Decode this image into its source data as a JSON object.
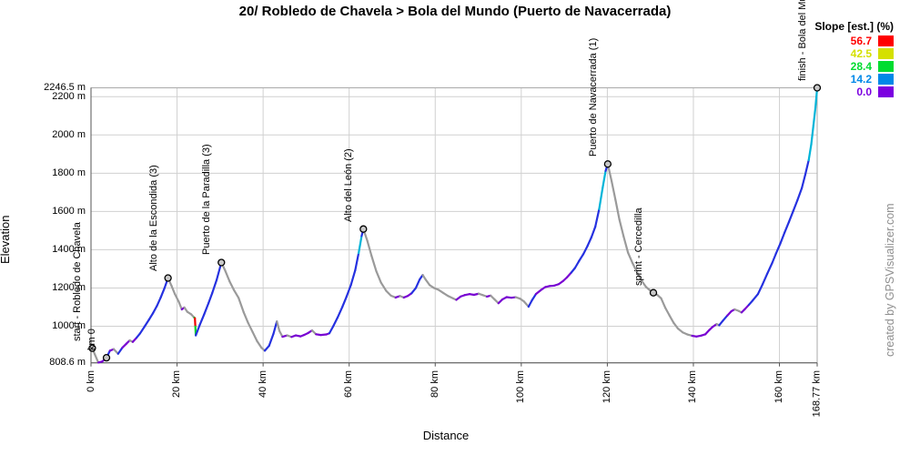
{
  "chart_data": {
    "type": "line",
    "title": "20/ Robledo de Chavela > Bola del Mundo (Puerto de Navacerrada)",
    "xlabel": "Distance",
    "ylabel": "Elevation",
    "watermark": "created by GPSVisualizer.com",
    "x_unit": "km",
    "y_unit": "m",
    "xlim": [
      0,
      168.77
    ],
    "ylim": [
      808.6,
      2246.5
    ],
    "grid": true,
    "legend": {
      "title": "Slope [est.] (%)",
      "position": "top-right",
      "items": [
        {
          "value": "56.7",
          "color": "#ff0000"
        },
        {
          "value": "42.5",
          "color": "#d5e000"
        },
        {
          "value": "28.4",
          "color": "#00dc30"
        },
        {
          "value": "14.2",
          "color": "#0088e8"
        },
        {
          "value": "0.0",
          "color": "#7b00e0"
        }
      ]
    },
    "x_ticks": [
      {
        "label": "0 km",
        "km": 0,
        "grid": false
      },
      {
        "label": "20 km",
        "km": 20,
        "grid": true
      },
      {
        "label": "40 km",
        "km": 40,
        "grid": true
      },
      {
        "label": "60 km",
        "km": 60,
        "grid": true
      },
      {
        "label": "80 km",
        "km": 80,
        "grid": true
      },
      {
        "label": "100 km",
        "km": 100,
        "grid": true
      },
      {
        "label": "120 km",
        "km": 120,
        "grid": true
      },
      {
        "label": "140 km",
        "km": 140,
        "grid": true
      },
      {
        "label": "160 km",
        "km": 160,
        "grid": true
      },
      {
        "label": "168.77 km",
        "km": 168.77,
        "grid": false
      }
    ],
    "y_ticks": [
      {
        "label": "2246.5 m",
        "m": 2246.5,
        "grid": false
      },
      {
        "label": "2200 m",
        "m": 2200,
        "grid": true
      },
      {
        "label": "2000 m",
        "m": 2000,
        "grid": true
      },
      {
        "label": "1800 m",
        "m": 1800,
        "grid": true
      },
      {
        "label": "1600 m",
        "m": 1600,
        "grid": true
      },
      {
        "label": "1400 m",
        "m": 1400,
        "grid": true
      },
      {
        "label": "1200 m",
        "m": 1200,
        "grid": true
      },
      {
        "label": "1000 m",
        "m": 1000,
        "grid": true
      },
      {
        "label": "808.6 m",
        "m": 808.6,
        "grid": false
      }
    ],
    "waypoints": [
      {
        "label": "start - Robledo de Chavela",
        "km": 0.3,
        "elev": 885
      },
      {
        "label": "km 0",
        "km": 3.6,
        "elev": 835
      },
      {
        "label": "Alto de la Escondida (3)",
        "km": 17.9,
        "elev": 1252
      },
      {
        "label": "Puerto de la Paradilla (3)",
        "km": 30.3,
        "elev": 1333
      },
      {
        "label": "Alto del León (2)",
        "km": 63.3,
        "elev": 1508
      },
      {
        "label": "Puerto de Navacerrada (1)",
        "km": 120.1,
        "elev": 1848
      },
      {
        "label": "sprint - Cercedilla",
        "km": 130.7,
        "elev": 1175
      },
      {
        "label": "finish - Bola del Mundo",
        "km": 168.77,
        "elev": 2246.5
      }
    ],
    "slope_scale": [
      {
        "max": -0.5,
        "color": "#9a9a9a"
      },
      {
        "max": 2.5,
        "color": "#7800d2"
      },
      {
        "max": 12,
        "color": "#2531e0"
      },
      {
        "max": 26,
        "color": "#00b4d8"
      },
      {
        "max": 36,
        "color": "#00d428"
      },
      {
        "max": 48,
        "color": "#d8dc00"
      },
      {
        "max": 999,
        "color": "#f00000"
      }
    ],
    "profile": [
      [
        0.3,
        885
      ],
      [
        0.9,
        852
      ],
      [
        1.7,
        810
      ],
      [
        2.6,
        815
      ],
      [
        3.6,
        835
      ],
      [
        4.4,
        872
      ],
      [
        5.3,
        880
      ],
      [
        6.3,
        856
      ],
      [
        7.3,
        888
      ],
      [
        8.2,
        908
      ],
      [
        9.0,
        926
      ],
      [
        9.7,
        918
      ],
      [
        10.6,
        940
      ],
      [
        11.4,
        962
      ],
      [
        12.5,
        1000
      ],
      [
        13.5,
        1035
      ],
      [
        14.4,
        1068
      ],
      [
        15.3,
        1105
      ],
      [
        16.2,
        1150
      ],
      [
        17.1,
        1200
      ],
      [
        17.9,
        1252
      ],
      [
        18.7,
        1212
      ],
      [
        19.5,
        1168
      ],
      [
        20.4,
        1128
      ],
      [
        21.1,
        1088
      ],
      [
        21.7,
        1098
      ],
      [
        22.4,
        1075
      ],
      [
        23.3,
        1062
      ],
      [
        24.0,
        1045
      ],
      [
        24.15,
        1042,
        "#00d428"
      ],
      [
        24.25,
        998,
        "#f00000"
      ],
      [
        24.35,
        952,
        "#00d428"
      ],
      [
        25.3,
        1008
      ],
      [
        26.3,
        1062
      ],
      [
        27.3,
        1120
      ],
      [
        28.2,
        1175
      ],
      [
        29.2,
        1242
      ],
      [
        30.3,
        1333
      ],
      [
        31.2,
        1290
      ],
      [
        32.2,
        1235
      ],
      [
        33.2,
        1190
      ],
      [
        34.3,
        1148
      ],
      [
        35.5,
        1072
      ],
      [
        36.5,
        1018
      ],
      [
        37.6,
        968
      ],
      [
        38.6,
        922
      ],
      [
        39.6,
        888
      ],
      [
        40.4,
        872
      ],
      [
        41.4,
        898
      ],
      [
        42.4,
        960
      ],
      [
        43.2,
        1025
      ],
      [
        43.8,
        975
      ],
      [
        44.5,
        945
      ],
      [
        45.6,
        952
      ],
      [
        46.6,
        944
      ],
      [
        47.6,
        952
      ],
      [
        48.7,
        947
      ],
      [
        49.6,
        955
      ],
      [
        50.5,
        965
      ],
      [
        51.4,
        978
      ],
      [
        52.3,
        958
      ],
      [
        53.4,
        954
      ],
      [
        54.7,
        957
      ],
      [
        55.4,
        963
      ],
      [
        56.3,
        1000
      ],
      [
        57.3,
        1045
      ],
      [
        58.4,
        1100
      ],
      [
        59.4,
        1155
      ],
      [
        60.4,
        1215
      ],
      [
        61.4,
        1292
      ],
      [
        62.2,
        1382
      ],
      [
        62.9,
        1472
      ],
      [
        63.3,
        1508
      ],
      [
        64.2,
        1448
      ],
      [
        65.2,
        1368
      ],
      [
        66.3,
        1288
      ],
      [
        67.4,
        1228
      ],
      [
        68.6,
        1185
      ],
      [
        69.7,
        1160
      ],
      [
        70.8,
        1150
      ],
      [
        71.8,
        1158
      ],
      [
        72.7,
        1150
      ],
      [
        73.6,
        1158
      ],
      [
        74.5,
        1172
      ],
      [
        75.5,
        1200
      ],
      [
        76.4,
        1245
      ],
      [
        77.1,
        1268
      ],
      [
        77.8,
        1243
      ],
      [
        78.7,
        1215
      ],
      [
        79.7,
        1200
      ],
      [
        80.8,
        1190
      ],
      [
        81.8,
        1175
      ],
      [
        83.0,
        1158
      ],
      [
        84.2,
        1145
      ],
      [
        84.9,
        1138
      ],
      [
        85.9,
        1155
      ],
      [
        86.9,
        1163
      ],
      [
        88.0,
        1168
      ],
      [
        89.0,
        1164
      ],
      [
        90.1,
        1170
      ],
      [
        91.0,
        1163
      ],
      [
        92.0,
        1155
      ],
      [
        92.9,
        1160
      ],
      [
        93.8,
        1140
      ],
      [
        94.7,
        1120
      ],
      [
        95.6,
        1140
      ],
      [
        96.6,
        1152
      ],
      [
        97.7,
        1149
      ],
      [
        98.7,
        1152
      ],
      [
        99.7,
        1144
      ],
      [
        100.6,
        1130
      ],
      [
        101.7,
        1102
      ],
      [
        102.5,
        1136
      ],
      [
        103.4,
        1168
      ],
      [
        104.5,
        1188
      ],
      [
        105.6,
        1205
      ],
      [
        106.6,
        1210
      ],
      [
        107.6,
        1212
      ],
      [
        108.7,
        1220
      ],
      [
        109.7,
        1236
      ],
      [
        110.6,
        1255
      ],
      [
        111.6,
        1280
      ],
      [
        112.5,
        1305
      ],
      [
        113.4,
        1340
      ],
      [
        114.4,
        1376
      ],
      [
        115.4,
        1420
      ],
      [
        116.3,
        1465
      ],
      [
        117.2,
        1520
      ],
      [
        118.1,
        1612
      ],
      [
        118.9,
        1722
      ],
      [
        119.6,
        1812
      ],
      [
        120.1,
        1848
      ],
      [
        121.0,
        1758
      ],
      [
        121.9,
        1660
      ],
      [
        122.8,
        1558
      ],
      [
        123.8,
        1468
      ],
      [
        124.8,
        1385
      ],
      [
        125.9,
        1328
      ],
      [
        127.0,
        1278
      ],
      [
        127.9,
        1240
      ],
      [
        129.0,
        1205
      ],
      [
        130.0,
        1186
      ],
      [
        130.7,
        1175
      ],
      [
        131.6,
        1164
      ],
      [
        132.5,
        1146
      ],
      [
        133.5,
        1095
      ],
      [
        134.4,
        1058
      ],
      [
        135.4,
        1018
      ],
      [
        136.4,
        988
      ],
      [
        137.5,
        968
      ],
      [
        138.6,
        957
      ],
      [
        139.7,
        950
      ],
      [
        140.7,
        946
      ],
      [
        141.8,
        951
      ],
      [
        142.8,
        958
      ],
      [
        143.7,
        980
      ],
      [
        144.5,
        997
      ],
      [
        145.4,
        1011
      ],
      [
        146.0,
        1005
      ],
      [
        146.9,
        1030
      ],
      [
        147.9,
        1056
      ],
      [
        148.8,
        1078
      ],
      [
        149.6,
        1088
      ],
      [
        150.5,
        1080
      ],
      [
        151.2,
        1072
      ],
      [
        152.0,
        1090
      ],
      [
        152.9,
        1112
      ],
      [
        153.8,
        1135
      ],
      [
        155.0,
        1168
      ],
      [
        156.1,
        1220
      ],
      [
        157.2,
        1276
      ],
      [
        158.3,
        1330
      ],
      [
        159.2,
        1380
      ],
      [
        160.2,
        1432
      ],
      [
        161.2,
        1490
      ],
      [
        162.2,
        1545
      ],
      [
        163.2,
        1602
      ],
      [
        164.2,
        1660
      ],
      [
        165.2,
        1722
      ],
      [
        166.0,
        1792
      ],
      [
        166.8,
        1868
      ],
      [
        167.4,
        1952
      ],
      [
        167.9,
        2050
      ],
      [
        168.35,
        2140
      ],
      [
        168.77,
        2246
      ]
    ]
  }
}
